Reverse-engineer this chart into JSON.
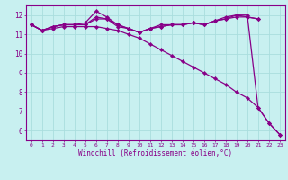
{
  "background_color": "#c8f0f0",
  "grid_color": "#aadddd",
  "line_color": "#880088",
  "x_values": [
    0,
    1,
    2,
    3,
    4,
    5,
    6,
    7,
    8,
    9,
    10,
    11,
    12,
    13,
    14,
    15,
    16,
    17,
    18,
    19,
    20,
    21,
    22,
    23
  ],
  "series1": [
    11.5,
    11.2,
    11.4,
    11.5,
    11.5,
    11.5,
    11.9,
    11.8,
    11.5,
    11.3,
    11.1,
    11.3,
    11.4,
    11.5,
    11.5,
    11.6,
    11.5,
    11.7,
    11.8,
    11.9,
    11.9,
    11.8,
    null,
    null
  ],
  "series2": [
    11.5,
    11.2,
    11.4,
    11.5,
    11.5,
    11.6,
    12.2,
    11.9,
    11.5,
    11.3,
    11.1,
    11.3,
    11.5,
    11.5,
    11.5,
    11.6,
    11.5,
    11.7,
    11.8,
    12.0,
    11.9,
    11.8,
    null,
    null
  ],
  "series3": [
    11.5,
    11.2,
    11.4,
    11.5,
    11.5,
    11.5,
    11.8,
    11.8,
    11.4,
    11.3,
    11.1,
    11.3,
    11.4,
    11.5,
    11.5,
    11.6,
    11.5,
    11.7,
    11.9,
    12.0,
    12.0,
    7.2,
    6.4,
    5.8
  ],
  "series4": [
    11.5,
    11.2,
    11.3,
    11.4,
    11.4,
    11.4,
    11.4,
    11.3,
    11.2,
    11.0,
    10.8,
    10.5,
    10.2,
    9.9,
    9.6,
    9.3,
    9.0,
    8.7,
    8.4,
    8.0,
    7.7,
    7.2,
    6.4,
    5.8
  ],
  "xlabel": "Windchill (Refroidissement éolien,°C)",
  "xlim": [
    -0.5,
    23.5
  ],
  "ylim": [
    5.5,
    12.5
  ],
  "yticks": [
    6,
    7,
    8,
    9,
    10,
    11,
    12
  ],
  "xticks": [
    0,
    1,
    2,
    3,
    4,
    5,
    6,
    7,
    8,
    9,
    10,
    11,
    12,
    13,
    14,
    15,
    16,
    17,
    18,
    19,
    20,
    21,
    22,
    23
  ]
}
